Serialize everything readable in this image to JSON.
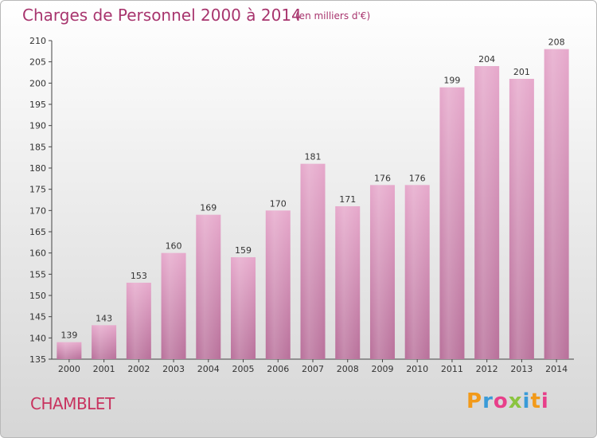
{
  "header": {
    "title": "Charges de Personnel 2000 à 2014",
    "subtitle": "(en milliers d'€)"
  },
  "footer": {
    "place": "CHAMBLET",
    "logo_text": "Proxiti",
    "logo_colors": [
      "#f29a1a",
      "#3a9bd8",
      "#e83f8a",
      "#8bc43f",
      "#3a9bd8",
      "#f29a1a",
      "#e83f8a"
    ]
  },
  "chart_data": {
    "type": "bar",
    "title": "Charges de Personnel 2000 à 2014",
    "subtitle": "(en milliers d'€)",
    "categories": [
      "2000",
      "2001",
      "2002",
      "2003",
      "2004",
      "2005",
      "2006",
      "2007",
      "2008",
      "2009",
      "2010",
      "2011",
      "2012",
      "2013",
      "2014"
    ],
    "values": [
      139,
      143,
      153,
      160,
      169,
      159,
      170,
      181,
      171,
      176,
      176,
      199,
      204,
      201,
      208
    ],
    "ylim": [
      135,
      210
    ],
    "ytick_step": 5,
    "grid": false,
    "bar_color": "#d98fb8"
  }
}
